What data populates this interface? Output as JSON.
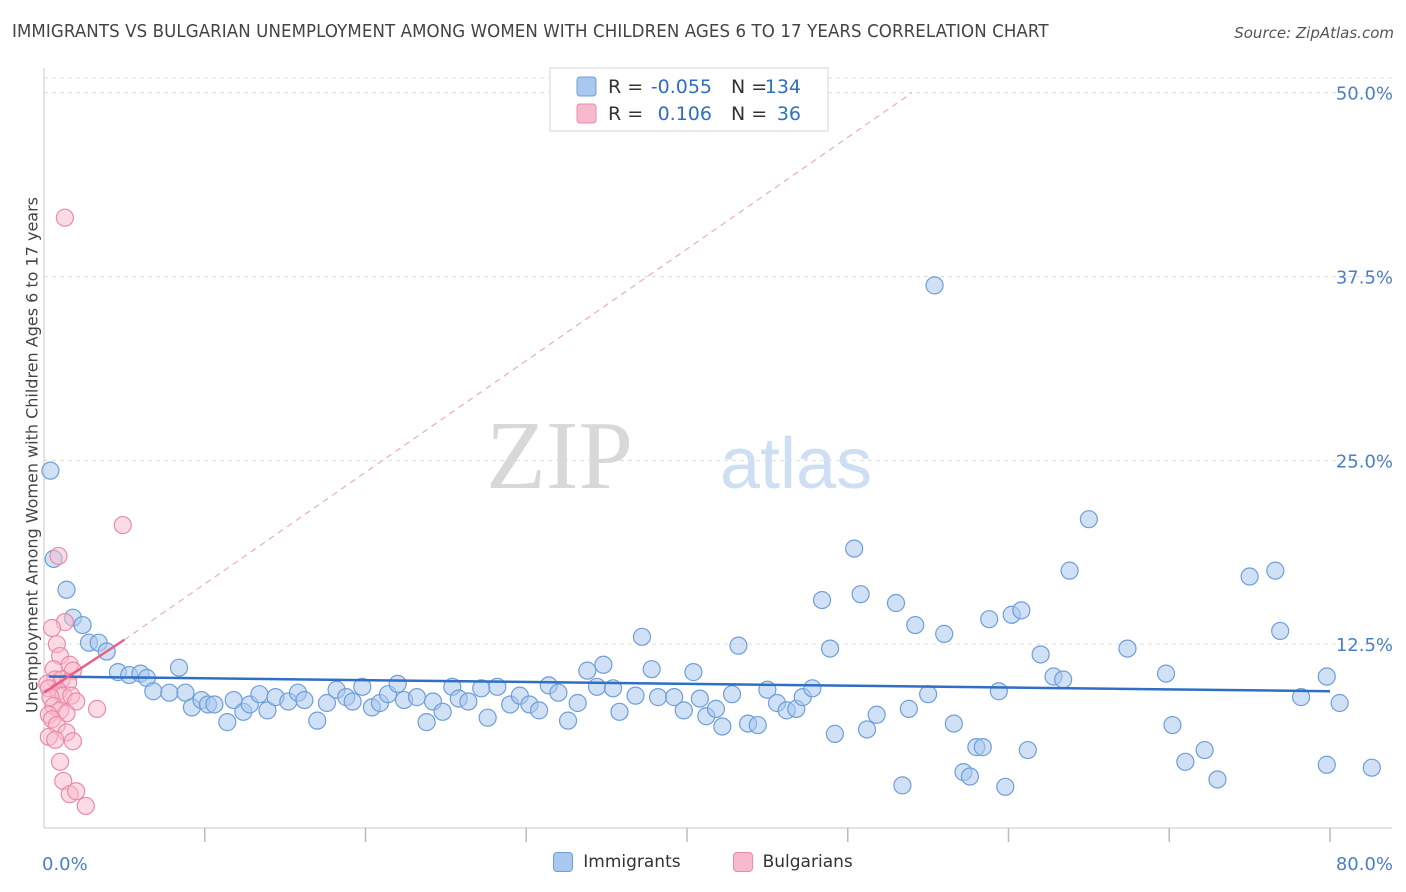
{
  "title": "IMMIGRANTS VS BULGARIAN UNEMPLOYMENT AMONG WOMEN WITH CHILDREN AGES 6 TO 17 YEARS CORRELATION CHART",
  "source": "Source: ZipAtlas.com",
  "watermark": {
    "zip": "ZIP",
    "atlas": "atlas"
  },
  "colors": {
    "blue_fill": "#a9c8ef",
    "blue_stroke": "#6f9ed8",
    "blue_line": "#2f6fc4",
    "pink_fill": "#f7b9cc",
    "pink_stroke": "#ec8aa8",
    "pink_line": "#e8608a",
    "tick_label": "#4a7fc9",
    "grid": "#dddddd"
  },
  "legend_top": [
    {
      "r_label": "R =",
      "r_value": "-0.055",
      "n_label": "N =",
      "n_value": "134"
    },
    {
      "r_label": "R =",
      "r_value": "0.106",
      "n_label": "N =",
      "n_value": "36"
    }
  ],
  "chart_data": {
    "type": "scatter",
    "title": "IMMIGRANTS VS BULGARIAN UNEMPLOYMENT AMONG WOMEN WITH CHILDREN AGES 6 TO 17 YEARS CORRELATION CHART",
    "xlabel": "",
    "ylabel": "Unemployment Among Women with Children Ages 6 to 17 years",
    "xlim": [
      0,
      80
    ],
    "ylim": [
      0,
      51
    ],
    "x_tick_labels": [
      "0.0%",
      "80.0%"
    ],
    "y_ticks": [
      12.5,
      25.0,
      37.5,
      50.0
    ],
    "y_tick_labels": [
      "12.5%",
      "25.0%",
      "37.5%",
      "50.0%"
    ],
    "series": [
      {
        "name": "Immigrants",
        "r": -0.055,
        "n": 134,
        "trend": {
          "x0": 0.3,
          "y0": 10.3,
          "x1": 80,
          "y1": 9.3
        },
        "points": [
          [
            0.4,
            24.3
          ],
          [
            0.6,
            18.3
          ],
          [
            1.4,
            16.2
          ],
          [
            1.8,
            14.3
          ],
          [
            2.4,
            13.8
          ],
          [
            2.8,
            12.6
          ],
          [
            3.4,
            12.6
          ],
          [
            3.9,
            12.0
          ],
          [
            4.6,
            10.6
          ],
          [
            5.3,
            10.4
          ],
          [
            6.0,
            10.5
          ],
          [
            6.4,
            10.2
          ],
          [
            6.8,
            9.3
          ],
          [
            7.8,
            9.2
          ],
          [
            8.4,
            10.9
          ],
          [
            8.8,
            9.2
          ],
          [
            9.2,
            8.2
          ],
          [
            9.8,
            8.7
          ],
          [
            10.2,
            8.4
          ],
          [
            10.6,
            8.4
          ],
          [
            11.4,
            7.2
          ],
          [
            11.8,
            8.7
          ],
          [
            12.4,
            7.9
          ],
          [
            12.8,
            8.4
          ],
          [
            13.4,
            9.1
          ],
          [
            13.9,
            8.0
          ],
          [
            14.4,
            8.9
          ],
          [
            15.2,
            8.6
          ],
          [
            15.8,
            9.2
          ],
          [
            16.2,
            8.7
          ],
          [
            17.0,
            7.3
          ],
          [
            17.6,
            8.5
          ],
          [
            18.2,
            9.4
          ],
          [
            18.8,
            8.9
          ],
          [
            19.2,
            8.6
          ],
          [
            19.8,
            9.6
          ],
          [
            20.4,
            8.2
          ],
          [
            20.9,
            8.5
          ],
          [
            21.4,
            9.1
          ],
          [
            22.0,
            9.8
          ],
          [
            22.4,
            8.7
          ],
          [
            23.2,
            8.9
          ],
          [
            23.8,
            7.2
          ],
          [
            24.2,
            8.6
          ],
          [
            24.8,
            7.9
          ],
          [
            25.4,
            9.6
          ],
          [
            25.8,
            8.8
          ],
          [
            26.4,
            8.6
          ],
          [
            27.2,
            9.5
          ],
          [
            27.6,
            7.5
          ],
          [
            28.2,
            9.6
          ],
          [
            29.0,
            8.4
          ],
          [
            29.6,
            9.0
          ],
          [
            30.2,
            8.4
          ],
          [
            30.8,
            8.0
          ],
          [
            31.4,
            9.7
          ],
          [
            32.0,
            9.2
          ],
          [
            32.6,
            7.3
          ],
          [
            33.2,
            8.5
          ],
          [
            33.8,
            10.7
          ],
          [
            34.4,
            9.6
          ],
          [
            34.8,
            11.1
          ],
          [
            35.4,
            9.5
          ],
          [
            35.8,
            7.9
          ],
          [
            36.8,
            9.0
          ],
          [
            37.2,
            13.0
          ],
          [
            37.8,
            10.8
          ],
          [
            38.2,
            8.9
          ],
          [
            39.2,
            8.9
          ],
          [
            39.8,
            8.0
          ],
          [
            40.4,
            10.6
          ],
          [
            40.8,
            8.8
          ],
          [
            41.2,
            7.6
          ],
          [
            41.8,
            8.1
          ],
          [
            42.2,
            6.9
          ],
          [
            42.8,
            9.1
          ],
          [
            43.2,
            12.4
          ],
          [
            43.8,
            7.1
          ],
          [
            44.4,
            7.0
          ],
          [
            45.0,
            9.4
          ],
          [
            45.6,
            8.5
          ],
          [
            46.2,
            8.0
          ],
          [
            46.8,
            8.1
          ],
          [
            47.2,
            8.9
          ],
          [
            47.8,
            9.5
          ],
          [
            48.4,
            15.5
          ],
          [
            48.9,
            12.2
          ],
          [
            49.2,
            6.4
          ],
          [
            50.4,
            19.0
          ],
          [
            50.8,
            15.9
          ],
          [
            51.2,
            6.7
          ],
          [
            51.8,
            7.7
          ],
          [
            53.0,
            15.3
          ],
          [
            53.4,
            2.9
          ],
          [
            53.8,
            8.1
          ],
          [
            54.2,
            13.8
          ],
          [
            55.0,
            9.1
          ],
          [
            55.4,
            36.9
          ],
          [
            56.0,
            13.2
          ],
          [
            56.6,
            7.1
          ],
          [
            57.2,
            3.8
          ],
          [
            57.6,
            3.5
          ],
          [
            58.0,
            5.5
          ],
          [
            58.4,
            5.5
          ],
          [
            58.8,
            14.2
          ],
          [
            59.4,
            9.3
          ],
          [
            59.8,
            2.8
          ],
          [
            60.2,
            14.5
          ],
          [
            60.8,
            14.8
          ],
          [
            61.2,
            5.3
          ],
          [
            62.0,
            11.8
          ],
          [
            62.8,
            10.3
          ],
          [
            63.4,
            10.1
          ],
          [
            63.8,
            17.5
          ],
          [
            65.0,
            21.0
          ],
          [
            67.4,
            12.2
          ],
          [
            69.8,
            10.5
          ],
          [
            70.2,
            7.0
          ],
          [
            71.0,
            4.5
          ],
          [
            72.2,
            5.3
          ],
          [
            73.0,
            3.3
          ],
          [
            75.0,
            17.1
          ],
          [
            76.6,
            17.5
          ],
          [
            76.9,
            13.4
          ],
          [
            78.2,
            8.9
          ],
          [
            79.8,
            10.3
          ],
          [
            79.8,
            4.3
          ],
          [
            80.6,
            8.5
          ],
          [
            82.6,
            4.1
          ]
        ]
      },
      {
        "name": "Bulgarians",
        "r": 0.106,
        "n": 36,
        "trend": {
          "x0": 0.0,
          "y0": 9.2,
          "x1": 5.0,
          "y1": 12.8
        },
        "trend_extended": {
          "x0": 5.0,
          "y0": 12.8,
          "x1": 54.0,
          "y1": 50.0
        },
        "points": [
          [
            1.3,
            41.5
          ],
          [
            4.9,
            20.6
          ],
          [
            0.9,
            18.5
          ],
          [
            1.3,
            14.0
          ],
          [
            0.5,
            13.6
          ],
          [
            0.8,
            12.5
          ],
          [
            1.0,
            11.7
          ],
          [
            1.6,
            11.1
          ],
          [
            1.8,
            10.7
          ],
          [
            0.6,
            10.8
          ],
          [
            0.7,
            10.1
          ],
          [
            1.1,
            10.1
          ],
          [
            1.5,
            9.9
          ],
          [
            0.2,
            9.8
          ],
          [
            0.3,
            9.5
          ],
          [
            0.9,
            9.3
          ],
          [
            1.2,
            9.0
          ],
          [
            1.7,
            9.0
          ],
          [
            2.0,
            8.6
          ],
          [
            0.4,
            8.9
          ],
          [
            0.6,
            8.3
          ],
          [
            1.0,
            8.0
          ],
          [
            1.4,
            7.8
          ],
          [
            0.3,
            7.7
          ],
          [
            0.5,
            7.4
          ],
          [
            0.8,
            7.0
          ],
          [
            3.3,
            8.1
          ],
          [
            1.4,
            6.5
          ],
          [
            0.3,
            6.2
          ],
          [
            0.7,
            6.0
          ],
          [
            1.8,
            5.9
          ],
          [
            1.2,
            3.2
          ],
          [
            1.6,
            2.3
          ],
          [
            2.0,
            2.5
          ],
          [
            2.6,
            1.5
          ],
          [
            1.0,
            4.5
          ]
        ]
      }
    ]
  },
  "bottom_legend": [
    "Immigrants",
    "Bulgarians"
  ]
}
